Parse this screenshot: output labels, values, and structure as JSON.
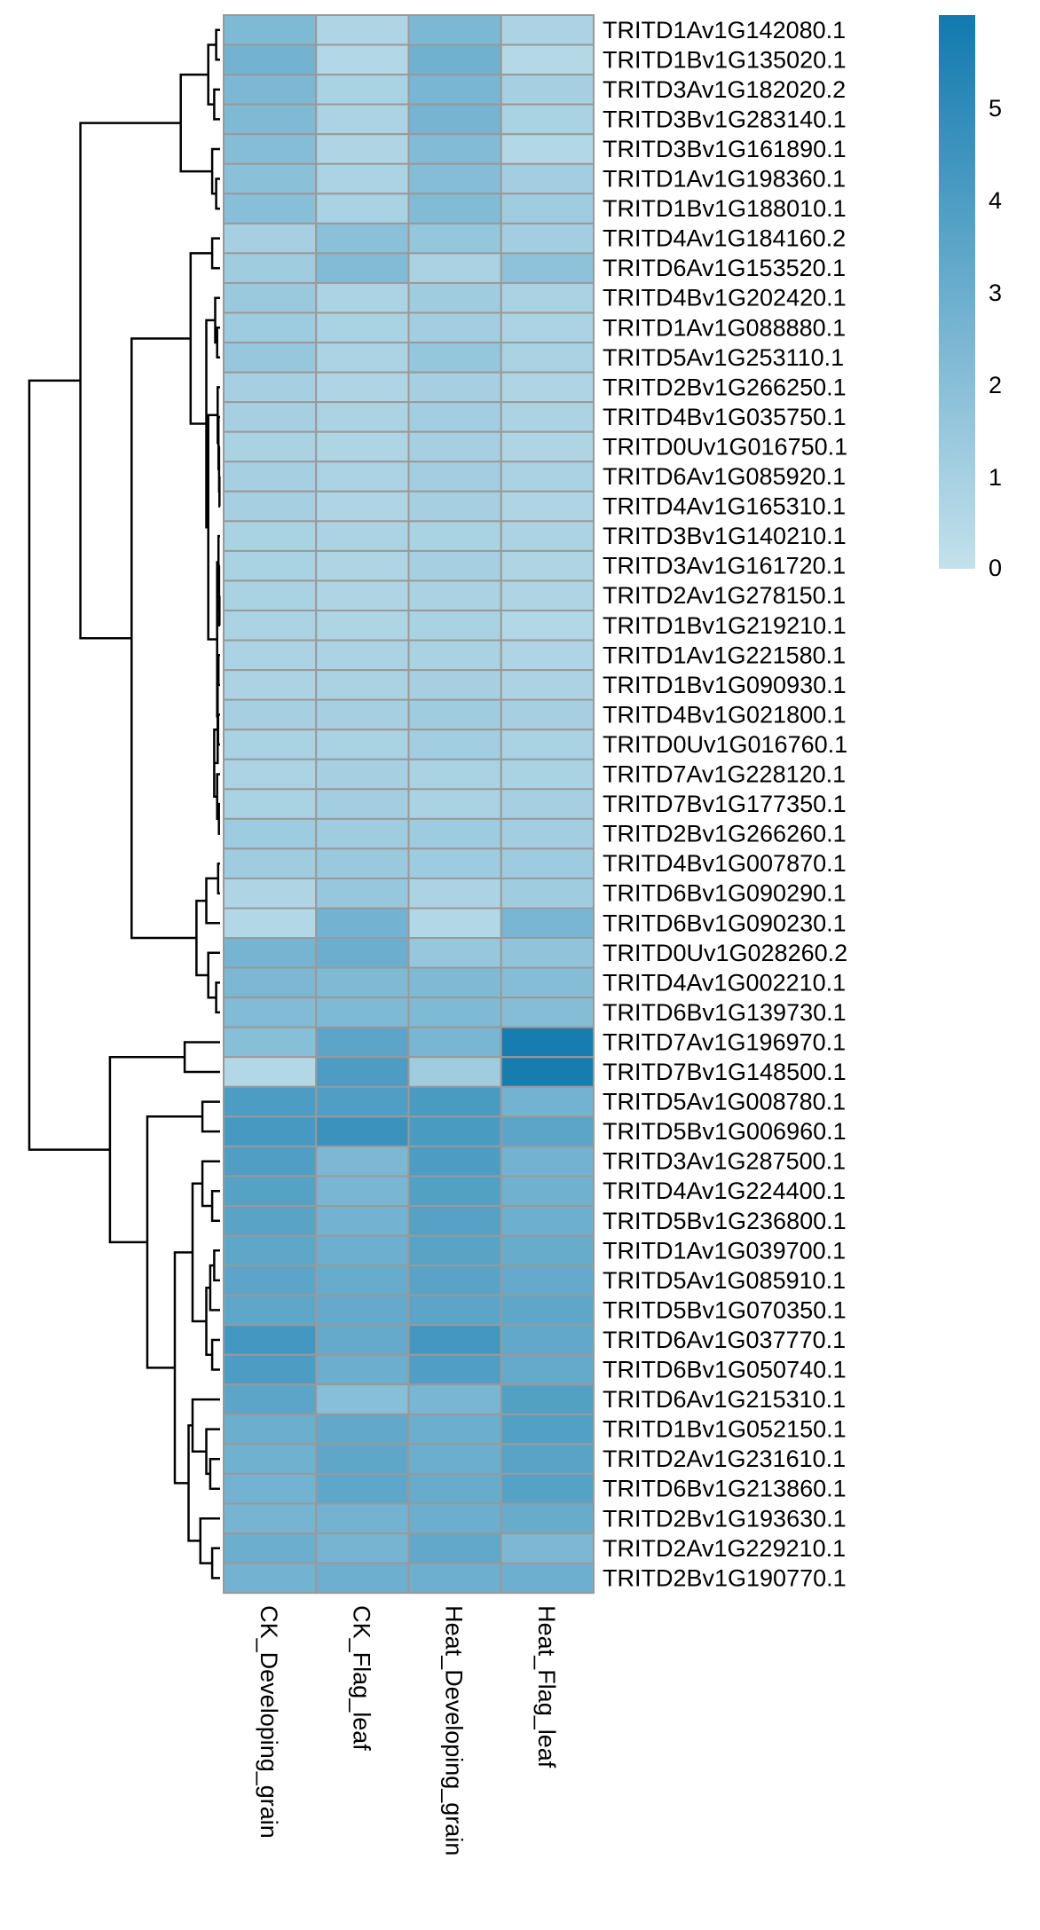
{
  "chart_data": {
    "type": "heatmap",
    "columns": [
      "CK_Developing_grain",
      "CK_Flag_leaf",
      "Heat_Developing_grain",
      "Heat_Flag_leaf"
    ],
    "rows": [
      "TRITD1Av1G142080.1",
      "TRITD1Bv1G135020.1",
      "TRITD3Av1G182020.2",
      "TRITD3Bv1G283140.1",
      "TRITD3Bv1G161890.1",
      "TRITD1Av1G198360.1",
      "TRITD1Bv1G188010.1",
      "TRITD4Av1G184160.2",
      "TRITD6Av1G153520.1",
      "TRITD4Bv1G202420.1",
      "TRITD1Av1G088880.1",
      "TRITD5Av1G253110.1",
      "TRITD2Bv1G266250.1",
      "TRITD4Bv1G035750.1",
      "TRITD0Uv1G016750.1",
      "TRITD6Av1G085920.1",
      "TRITD4Av1G165310.1",
      "TRITD3Bv1G140210.1",
      "TRITD3Av1G161720.1",
      "TRITD2Av1G278150.1",
      "TRITD1Bv1G219210.1",
      "TRITD1Av1G221580.1",
      "TRITD1Bv1G090930.1",
      "TRITD4Bv1G021800.1",
      "TRITD0Uv1G016760.1",
      "TRITD7Av1G228120.1",
      "TRITD7Bv1G177350.1",
      "TRITD2Bv1G266260.1",
      "TRITD4Bv1G007870.1",
      "TRITD6Bv1G090290.1",
      "TRITD6Bv1G090230.1",
      "TRITD0Uv1G028260.2",
      "TRITD4Av1G002210.1",
      "TRITD6Bv1G139730.1",
      "TRITD7Av1G196970.1",
      "TRITD7Bv1G148500.1",
      "TRITD5Av1G008780.1",
      "TRITD5Bv1G006960.1",
      "TRITD3Av1G287500.1",
      "TRITD4Av1G224400.1",
      "TRITD5Bv1G236800.1",
      "TRITD1Av1G039700.1",
      "TRITD5Av1G085910.1",
      "TRITD5Bv1G070350.1",
      "TRITD6Av1G037770.1",
      "TRITD6Bv1G050740.1",
      "TRITD6Av1G215310.1",
      "TRITD1Bv1G052150.1",
      "TRITD2Av1G231610.1",
      "TRITD6Bv1G213860.1",
      "TRITD2Bv1G193630.1",
      "TRITD2Av1G229210.1",
      "TRITD2Bv1G190770.1"
    ],
    "values": [
      [
        2.3,
        0.7,
        2.4,
        0.8
      ],
      [
        2.7,
        0.6,
        2.8,
        0.5
      ],
      [
        2.4,
        0.9,
        2.5,
        1.0
      ],
      [
        2.3,
        0.8,
        2.6,
        0.9
      ],
      [
        2.1,
        0.7,
        2.2,
        0.6
      ],
      [
        1.9,
        0.8,
        2.1,
        1.1
      ],
      [
        2.0,
        0.9,
        2.2,
        1.2
      ],
      [
        1.0,
        1.9,
        1.6,
        1.1
      ],
      [
        1.2,
        2.2,
        0.9,
        1.8
      ],
      [
        1.4,
        0.8,
        1.2,
        0.9
      ],
      [
        1.3,
        0.9,
        1.1,
        0.8
      ],
      [
        1.5,
        0.8,
        1.6,
        0.9
      ],
      [
        1.0,
        0.7,
        1.0,
        0.7
      ],
      [
        1.0,
        0.8,
        1.1,
        0.8
      ],
      [
        0.9,
        0.7,
        1.0,
        0.7
      ],
      [
        1.0,
        0.8,
        1.1,
        0.9
      ],
      [
        1.0,
        0.7,
        1.0,
        0.7
      ],
      [
        0.9,
        0.8,
        0.9,
        0.8
      ],
      [
        0.9,
        0.7,
        1.0,
        0.7
      ],
      [
        0.9,
        0.7,
        0.9,
        0.7
      ],
      [
        0.8,
        0.7,
        0.9,
        0.6
      ],
      [
        0.8,
        0.8,
        0.9,
        0.7
      ],
      [
        0.8,
        0.9,
        1.0,
        0.8
      ],
      [
        1.0,
        1.0,
        1.2,
        1.0
      ],
      [
        0.9,
        0.9,
        1.1,
        0.9
      ],
      [
        0.8,
        1.0,
        0.9,
        0.9
      ],
      [
        0.9,
        1.1,
        0.9,
        1.0
      ],
      [
        1.3,
        1.2,
        1.3,
        1.1
      ],
      [
        1.2,
        1.4,
        1.3,
        1.3
      ],
      [
        0.7,
        1.5,
        0.8,
        1.2
      ],
      [
        0.6,
        2.7,
        0.6,
        2.5
      ],
      [
        2.6,
        3.0,
        1.5,
        1.7
      ],
      [
        2.4,
        2.3,
        2.3,
        2.1
      ],
      [
        2.2,
        2.3,
        2.3,
        2.1
      ],
      [
        2.0,
        3.5,
        2.5,
        5.8
      ],
      [
        0.6,
        4.0,
        1.2,
        5.8
      ],
      [
        4.0,
        3.9,
        4.1,
        2.7
      ],
      [
        4.2,
        4.6,
        4.1,
        3.5
      ],
      [
        3.9,
        2.4,
        4.0,
        2.7
      ],
      [
        3.7,
        2.5,
        3.8,
        2.8
      ],
      [
        3.6,
        2.7,
        3.7,
        2.9
      ],
      [
        3.4,
        2.9,
        3.6,
        3.1
      ],
      [
        3.5,
        3.1,
        3.6,
        3.2
      ],
      [
        3.4,
        3.2,
        3.5,
        3.4
      ],
      [
        4.3,
        3.2,
        4.3,
        3.3
      ],
      [
        4.0,
        3.0,
        3.9,
        3.2
      ],
      [
        3.5,
        2.0,
        2.5,
        3.8
      ],
      [
        3.0,
        3.3,
        3.0,
        3.8
      ],
      [
        2.8,
        3.4,
        3.0,
        3.6
      ],
      [
        2.7,
        3.4,
        3.1,
        3.7
      ],
      [
        2.6,
        2.7,
        3.0,
        3.1
      ],
      [
        3.0,
        2.6,
        3.3,
        2.4
      ],
      [
        2.7,
        2.9,
        2.9,
        2.9
      ]
    ],
    "color_scale": {
      "min": 0,
      "max": 6,
      "low_color": "#c4e1ec",
      "high_color": "#117aaf"
    },
    "legend": {
      "ticks": [
        "0",
        "1",
        "2",
        "3",
        "4",
        "5"
      ],
      "placement": "top-right"
    },
    "cell_border_color": "#999999",
    "dendrogram": "rows",
    "grid": false
  }
}
